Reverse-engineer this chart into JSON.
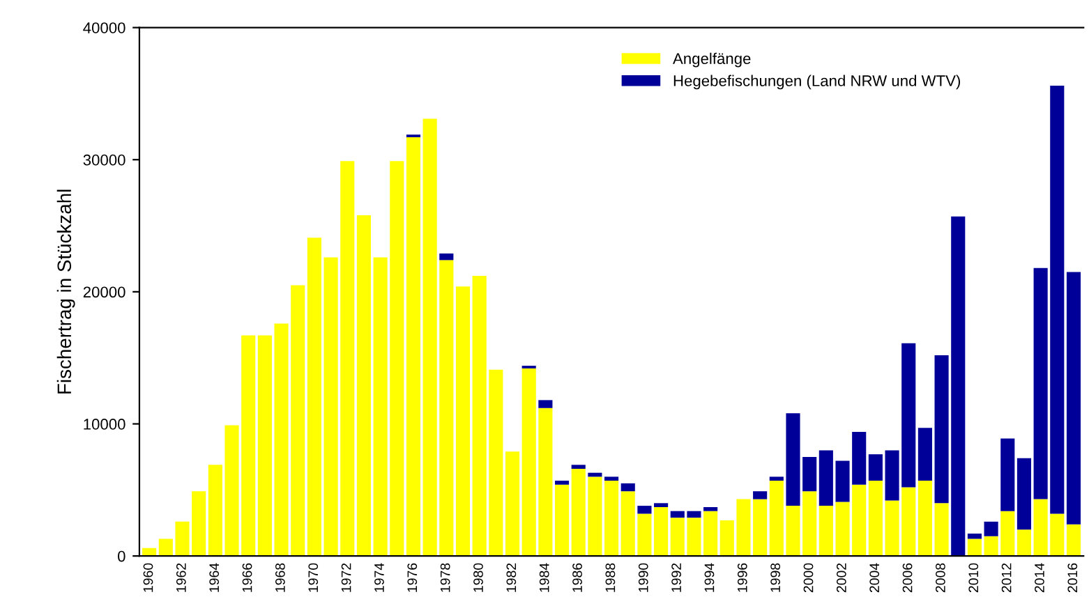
{
  "chart_data": {
    "type": "bar",
    "stacked": true,
    "ylabel": "Fischertrag in Stückzahl",
    "categories": [
      "1960",
      null,
      "1962",
      null,
      "1964",
      null,
      "1966",
      null,
      "1968",
      null,
      "1970",
      null,
      "1972",
      null,
      "1974",
      null,
      "1976",
      null,
      "1978",
      null,
      "1980",
      null,
      "1982",
      null,
      "1984",
      null,
      "1986",
      null,
      "1988",
      null,
      "1990",
      null,
      "1992",
      null,
      "1994",
      null,
      "1996",
      null,
      "1998",
      null,
      "2000",
      null,
      "2002",
      null,
      "2004",
      null,
      "2006",
      null,
      "2008",
      null,
      "2010",
      null,
      "2012",
      null,
      "2014",
      null,
      "2016"
    ],
    "series": [
      {
        "name": "Angelfänge",
        "color": "#ffff00",
        "values": [
          600,
          1300,
          2600,
          4900,
          6900,
          9900,
          16700,
          16700,
          17600,
          20500,
          24100,
          22600,
          29900,
          25800,
          22600,
          29900,
          31700,
          33100,
          22400,
          20400,
          21200,
          14100,
          7900,
          14200,
          11200,
          5400,
          6600,
          6000,
          5700,
          4900,
          3200,
          3700,
          2900,
          2900,
          3400,
          2700,
          4300,
          4300,
          5700,
          3800,
          4900,
          3800,
          4100,
          5400,
          5700,
          4200,
          5200,
          5700,
          4000,
          0,
          1300,
          1500,
          3400,
          2000,
          4300,
          3200,
          2400
        ]
      },
      {
        "name": "Hegebefischungen (Land NRW und WTV)",
        "color": "#000099",
        "values": [
          0,
          0,
          0,
          0,
          0,
          0,
          0,
          0,
          0,
          0,
          0,
          0,
          0,
          0,
          0,
          0,
          200,
          0,
          500,
          0,
          0,
          0,
          0,
          200,
          600,
          300,
          300,
          300,
          300,
          600,
          600,
          300,
          500,
          500,
          300,
          0,
          0,
          600,
          300,
          7000,
          2600,
          4200,
          3100,
          4000,
          2000,
          3800,
          10900,
          4000,
          11200,
          25700,
          400,
          1100,
          5500,
          5400,
          17500,
          32400,
          19100
        ]
      }
    ],
    "ylim": [
      0,
      40000
    ],
    "yticks": [
      0,
      10000,
      20000,
      30000,
      40000
    ],
    "grid": false,
    "legend": "top right"
  }
}
